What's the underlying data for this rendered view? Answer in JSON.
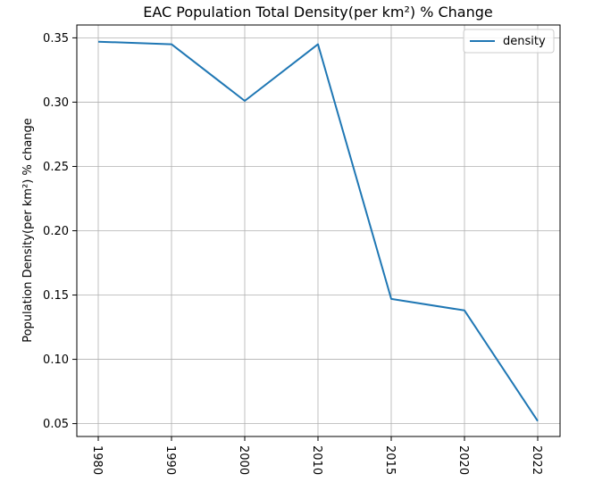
{
  "chart_data": {
    "type": "line",
    "title": "EAC Population Total Density(per km²) % Change",
    "xlabel": "",
    "ylabel": "Population Density(per km²) % change",
    "categories": [
      "1980",
      "1990",
      "2000",
      "2010",
      "2015",
      "2020",
      "2022"
    ],
    "series": [
      {
        "name": "density",
        "color": "#1f77b4",
        "values": [
          0.347,
          0.345,
          0.301,
          0.345,
          0.147,
          0.138,
          0.052
        ]
      }
    ],
    "yticks": [
      "0.05",
      "0.10",
      "0.15",
      "0.20",
      "0.25",
      "0.30",
      "0.35"
    ],
    "ylim": [
      0.04,
      0.36
    ],
    "grid": true,
    "legend_position": "top-right",
    "xtick_rotation": "vertical"
  }
}
